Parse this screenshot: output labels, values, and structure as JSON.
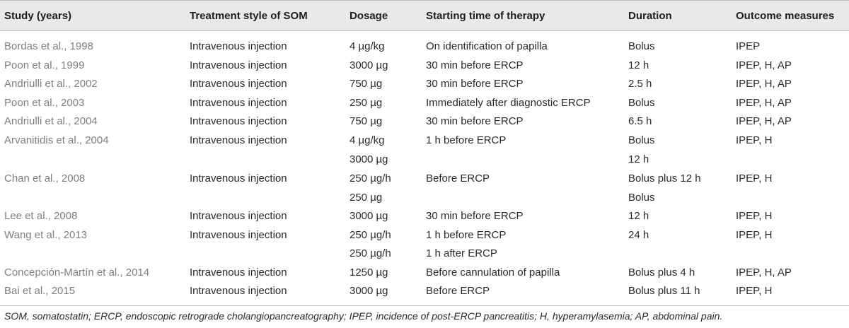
{
  "headers": [
    "Study (years)",
    "Treatment style of SOM",
    "Dosage",
    "Starting time of therapy",
    "Duration",
    "Outcome measures"
  ],
  "rows": [
    {
      "study": "Bordas et al., 1998",
      "treatment": "Intravenous injection",
      "dosage": "4 µg/kg",
      "start": "On identification of papilla",
      "duration": "Bolus",
      "outcome": "IPEP"
    },
    {
      "study": "Poon et al., 1999",
      "treatment": "Intravenous injection",
      "dosage": "3000 µg",
      "start": "30 min before ERCP",
      "duration": "12 h",
      "outcome": "IPEP, H, AP"
    },
    {
      "study": "Andriulli et al., 2002",
      "treatment": "Intravenous injection",
      "dosage": "750 µg",
      "start": "30 min before ERCP",
      "duration": "2.5 h",
      "outcome": "IPEP, H, AP"
    },
    {
      "study": "Poon et al., 2003",
      "treatment": "Intravenous injection",
      "dosage": "250 µg",
      "start": "Immediately after diagnostic ERCP",
      "duration": "Bolus",
      "outcome": "IPEP, H, AP"
    },
    {
      "study": "Andriulli et al., 2004",
      "treatment": "Intravenous injection",
      "dosage": "750 µg",
      "start": "30 min before ERCP",
      "duration": "6.5 h",
      "outcome": "IPEP, H, AP"
    },
    {
      "study": "Arvanitidis et al., 2004",
      "treatment": "Intravenous injection",
      "dosage": "4 µg/kg",
      "start": "1 h before ERCP",
      "duration": "Bolus",
      "outcome": "IPEP, H"
    },
    {
      "study": "",
      "treatment": "",
      "dosage": "3000 µg",
      "start": "",
      "duration": "12 h",
      "outcome": ""
    },
    {
      "study": "Chan et al., 2008",
      "treatment": "Intravenous injection",
      "dosage": "250 µg/h",
      "start": "Before ERCP",
      "duration": "Bolus plus 12 h",
      "outcome": "IPEP, H"
    },
    {
      "study": "",
      "treatment": "",
      "dosage": "250 µg",
      "start": "",
      "duration": "Bolus",
      "outcome": ""
    },
    {
      "study": "Lee et al., 2008",
      "treatment": "Intravenous injection",
      "dosage": "3000 µg",
      "start": "30 min before ERCP",
      "duration": "12 h",
      "outcome": "IPEP, H"
    },
    {
      "study": "Wang et al., 2013",
      "treatment": "Intravenous injection",
      "dosage": "250 µg/h",
      "start": "1 h before ERCP",
      "duration": "24 h",
      "outcome": "IPEP, H"
    },
    {
      "study": "",
      "treatment": "",
      "dosage": "250 µg/h",
      "start": "1 h after ERCP",
      "duration": "",
      "outcome": ""
    },
    {
      "study": "Concepción-Martín et al., 2014",
      "treatment": "Intravenous injection",
      "dosage": "1250 µg",
      "start": "Before cannulation of papilla",
      "duration": "Bolus plus 4 h",
      "outcome": "IPEP, H, AP"
    },
    {
      "study": "Bai et al., 2015",
      "treatment": "Intravenous injection",
      "dosage": "3000 µg",
      "start": "Before ERCP",
      "duration": "Bolus plus 11 h",
      "outcome": "IPEP, H"
    }
  ],
  "footnote": "SOM, somatostatin; ERCP, endoscopic retrograde cholangiopancreatography; IPEP, incidence of post-ERCP pancreatitis; H, hyperamylasemia; AP, abdominal pain."
}
